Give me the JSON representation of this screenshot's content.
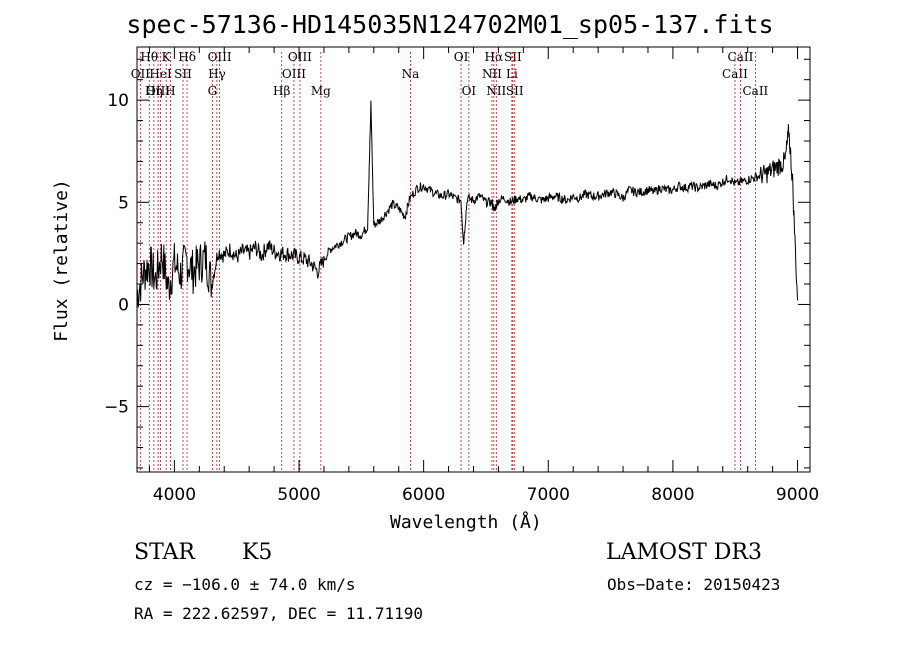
{
  "chart_data": {
    "type": "line",
    "title": "spec-57136-HD145035N124702M01_sp05-137.fits",
    "xlabel": "Wavelength (Å)",
    "ylabel": "Flux (relative)",
    "xlim": [
      3700,
      9100
    ],
    "ylim": [
      -8.2,
      12.6
    ],
    "xticks": [
      4000,
      5000,
      6000,
      7000,
      8000,
      9000
    ],
    "yticks": [
      -5,
      0,
      5,
      10
    ],
    "grid": false,
    "series": [
      {
        "values_description": "spectrum flux",
        "x": [
          3700,
          3750,
          3800,
          3850,
          3900,
          3950,
          4000,
          4050,
          4100,
          4150,
          4200,
          4250,
          4300,
          4350,
          4400,
          4450,
          4500,
          4550,
          4600,
          4650,
          4700,
          4750,
          4800,
          4850,
          4900,
          4950,
          5000,
          5050,
          5100,
          5150,
          5200,
          5250,
          5300,
          5350,
          5400,
          5450,
          5500,
          5550,
          5577,
          5600,
          5650,
          5700,
          5750,
          5800,
          5850,
          5890,
          5950,
          6000,
          6050,
          6100,
          6150,
          6200,
          6250,
          6300,
          6320,
          6350,
          6400,
          6450,
          6500,
          6550,
          6563,
          6600,
          6650,
          6700,
          6750,
          6800,
          6850,
          6900,
          6950,
          7000,
          7050,
          7100,
          7150,
          7200,
          7250,
          7300,
          7350,
          7400,
          7450,
          7500,
          7550,
          7600,
          7650,
          7700,
          7750,
          7800,
          7850,
          7900,
          7950,
          8000,
          8050,
          8100,
          8150,
          8200,
          8250,
          8300,
          8350,
          8400,
          8450,
          8500,
          8550,
          8600,
          8650,
          8700,
          8750,
          8800,
          8850,
          8900,
          8930,
          8960,
          9000
        ],
        "y": [
          0.5,
          1.5,
          2.0,
          1.2,
          2.5,
          0.8,
          2.0,
          1.5,
          2.2,
          1.6,
          2.0,
          2.3,
          1.0,
          2.6,
          2.4,
          2.7,
          2.3,
          2.6,
          2.5,
          2.8,
          2.4,
          2.9,
          2.6,
          2.5,
          2.5,
          2.4,
          2.3,
          2.2,
          2.0,
          1.6,
          2.2,
          2.7,
          2.9,
          3.1,
          3.3,
          3.5,
          3.4,
          3.8,
          9.8,
          3.9,
          4.1,
          4.5,
          4.9,
          4.7,
          4.3,
          5.2,
          5.7,
          5.8,
          5.6,
          5.4,
          5.3,
          5.4,
          5.2,
          5.1,
          3.0,
          5.2,
          5.1,
          5.3,
          5.0,
          5.0,
          4.6,
          5.1,
          5.2,
          5.0,
          5.2,
          5.1,
          5.3,
          5.2,
          5.1,
          5.2,
          5.3,
          5.2,
          5.1,
          5.3,
          5.2,
          5.4,
          5.3,
          5.3,
          5.4,
          5.5,
          5.4,
          5.2,
          5.6,
          5.5,
          5.5,
          5.6,
          5.5,
          5.7,
          5.6,
          5.6,
          5.8,
          5.7,
          5.8,
          5.7,
          5.8,
          5.9,
          5.8,
          6.0,
          6.2,
          5.9,
          6.0,
          6.1,
          6.2,
          6.3,
          6.4,
          6.6,
          6.8,
          7.0,
          8.5,
          6.0,
          0.2
        ]
      }
    ],
    "line_markers": [
      {
        "label": "Hθ",
        "x": 3798,
        "row": 0
      },
      {
        "label": "OII",
        "x": 3727,
        "row": 1
      },
      {
        "label": "OIII",
        "x": 3869,
        "row": 2
      },
      {
        "label": "K",
        "x": 3934,
        "row": 0
      },
      {
        "label": "HeI",
        "x": 3889,
        "row": 1
      },
      {
        "label": "Hη",
        "x": 3835,
        "row": 2
      },
      {
        "label": "SII",
        "x": 4069,
        "row": 1
      },
      {
        "label": "H",
        "x": 3968,
        "row": 2
      },
      {
        "label": "Hδ",
        "x": 4102,
        "row": 0
      },
      {
        "label": "OIII",
        "x": 4363,
        "row": 0
      },
      {
        "label": "Hγ",
        "x": 4341,
        "row": 1
      },
      {
        "label": "G",
        "x": 4305,
        "row": 2
      },
      {
        "label": "Hβ",
        "x": 4861,
        "row": 2
      },
      {
        "label": "OIII",
        "x": 4959,
        "row": 1
      },
      {
        "label": "OIII",
        "x": 5007,
        "row": 0
      },
      {
        "label": "Mg",
        "x": 5175,
        "row": 2
      },
      {
        "label": "Na",
        "x": 5894,
        "row": 1
      },
      {
        "label": "OI",
        "x": 6300,
        "row": 0
      },
      {
        "label": "OI",
        "x": 6363,
        "row": 2
      },
      {
        "label": "Hα",
        "x": 6563,
        "row": 0
      },
      {
        "label": "NII",
        "x": 6548,
        "row": 1
      },
      {
        "label": "NII",
        "x": 6583,
        "row": 2
      },
      {
        "label": "SII",
        "x": 6716,
        "row": 0
      },
      {
        "label": "Li",
        "x": 6708,
        "row": 1
      },
      {
        "label": "SII",
        "x": 6731,
        "row": 2
      },
      {
        "label": "CaII",
        "x": 8498,
        "row": 1
      },
      {
        "label": "CaII",
        "x": 8542,
        "row": 0
      },
      {
        "label": "CaII",
        "x": 8662,
        "row": 2
      }
    ]
  },
  "info": {
    "object_class": "STAR",
    "subclass": "K5",
    "survey": "LAMOST DR3",
    "cz": "cz = −106.0 ± 74.0 km/s",
    "obs_date": "Obs−Date: 20150423",
    "coords": "RA = 222.62597, DEC =  11.71190"
  },
  "colors": {
    "spectrum": "#000000",
    "marker_line": "#b02020",
    "axes": "#000000"
  }
}
